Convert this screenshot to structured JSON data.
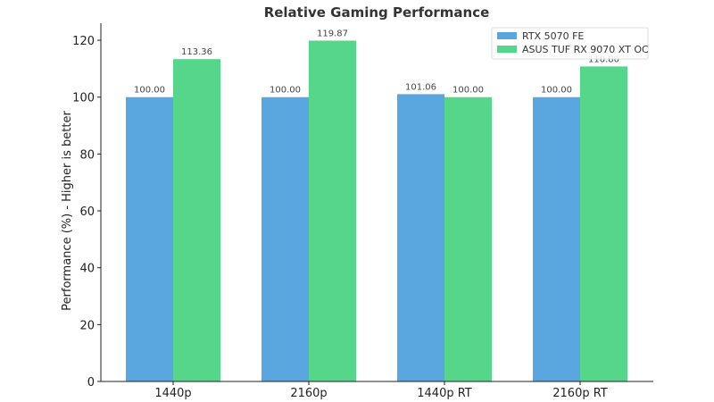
{
  "chart_data": {
    "type": "bar",
    "title": "Relative Gaming Performance",
    "xlabel": "",
    "ylabel": "Performance (%) - Higher is better",
    "categories": [
      "1440p",
      "2160p",
      "1440p RT",
      "2160p RT"
    ],
    "series": [
      {
        "name": "RTX 5070 FE",
        "color": "#5aa7e0",
        "values": [
          100.0,
          100.0,
          101.06,
          100.0
        ],
        "labels": [
          "100.00",
          "100.00",
          "101.06",
          "100.00"
        ]
      },
      {
        "name": "ASUS TUF RX 9070 XT OC",
        "color": "#55d68a",
        "values": [
          113.36,
          119.87,
          100.0,
          110.8
        ],
        "labels": [
          "113.36",
          "119.87",
          "100.00",
          "110.80"
        ]
      }
    ],
    "ylim": [
      0,
      126
    ],
    "yticks": [
      0,
      20,
      40,
      60,
      80,
      100,
      120
    ],
    "grid": false,
    "legend": "top-right"
  }
}
